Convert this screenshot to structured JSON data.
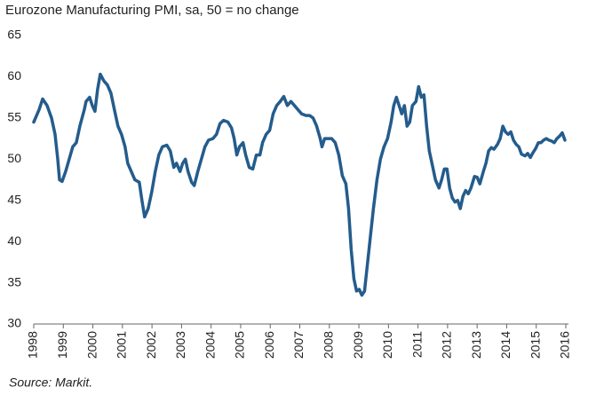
{
  "chart_data": {
    "type": "line",
    "title": "Eurozone Manufacturing PMI, sa, 50 = no change",
    "source": "Source: Markit.",
    "color": "#245c8c",
    "grid": false,
    "x": [
      1998.0,
      1998.18,
      1998.3,
      1998.45,
      1998.6,
      1998.72,
      1998.81,
      1998.87,
      1998.96,
      1999.08,
      1999.2,
      1999.32,
      1999.44,
      1999.56,
      1999.71,
      1999.77,
      1999.89,
      1999.98,
      2000.07,
      2000.16,
      2000.25,
      2000.37,
      2000.49,
      2000.61,
      2000.73,
      2000.85,
      2000.97,
      2001.09,
      2001.18,
      2001.3,
      2001.42,
      2001.57,
      2001.66,
      2001.75,
      2001.87,
      2001.99,
      2002.11,
      2002.23,
      2002.35,
      2002.5,
      2002.62,
      2002.74,
      2002.83,
      2002.95,
      2003.04,
      2003.13,
      2003.22,
      2003.34,
      2003.43,
      2003.55,
      2003.67,
      2003.79,
      2003.91,
      2004.06,
      2004.18,
      2004.3,
      2004.42,
      2004.57,
      2004.69,
      2004.78,
      2004.87,
      2004.96,
      2005.08,
      2005.17,
      2005.29,
      2005.41,
      2005.53,
      2005.65,
      2005.74,
      2005.86,
      2005.98,
      2006.1,
      2006.22,
      2006.34,
      2006.46,
      2006.58,
      2006.7,
      2006.82,
      2006.94,
      2007.06,
      2007.21,
      2007.33,
      2007.45,
      2007.57,
      2007.69,
      2007.75,
      2007.84,
      2007.96,
      2008.08,
      2008.2,
      2008.32,
      2008.44,
      2008.56,
      2008.65,
      2008.74,
      2008.83,
      2008.92,
      2009.01,
      2009.1,
      2009.19,
      2009.28,
      2009.37,
      2009.49,
      2009.61,
      2009.73,
      2009.85,
      2009.97,
      2010.09,
      2010.18,
      2010.27,
      2010.36,
      2010.45,
      2010.54,
      2010.63,
      2010.72,
      2010.81,
      2010.93,
      2011.02,
      2011.11,
      2011.2,
      2011.29,
      2011.38,
      2011.5,
      2011.59,
      2011.71,
      2011.8,
      2011.89,
      2011.98,
      2012.07,
      2012.16,
      2012.25,
      2012.34,
      2012.43,
      2012.52,
      2012.61,
      2012.7,
      2012.79,
      2012.91,
      2013.0,
      2013.09,
      2013.21,
      2013.3,
      2013.39,
      2013.48,
      2013.57,
      2013.69,
      2013.78,
      2013.87,
      2013.96,
      2014.05,
      2014.14,
      2014.23,
      2014.32,
      2014.41,
      2014.5,
      2014.62,
      2014.71,
      2014.8,
      2014.89,
      2014.98,
      2015.07,
      2015.16,
      2015.25,
      2015.34,
      2015.43,
      2015.52,
      2015.61,
      2015.7,
      2015.79,
      2015.88,
      2015.97
    ],
    "values": [
      54.5,
      56,
      57.3,
      56.5,
      55,
      53,
      50,
      47.5,
      47.3,
      48.5,
      50,
      51.5,
      52,
      54,
      56,
      57,
      57.5,
      56.5,
      55.8,
      58.5,
      60.3,
      59.5,
      59,
      58,
      56,
      54,
      53,
      51.5,
      49.5,
      48.5,
      47.5,
      47.2,
      45,
      43,
      44,
      46,
      48.5,
      50.5,
      51.5,
      51.7,
      51,
      49,
      49.5,
      48.5,
      49.5,
      50,
      48.5,
      47.2,
      46.8,
      48.5,
      50,
      51.5,
      52.3,
      52.5,
      53,
      54.3,
      54.7,
      54.5,
      53.8,
      52.5,
      50.5,
      51.5,
      52,
      50.5,
      49,
      48.8,
      50.5,
      50.5,
      52,
      53,
      53.5,
      55.5,
      56.5,
      57,
      57.6,
      56.5,
      57,
      56.5,
      56,
      55.5,
      55.3,
      55.3,
      55,
      54,
      52.5,
      51.5,
      52.5,
      52.5,
      52.5,
      52,
      50.5,
      48,
      47,
      44,
      39,
      35.5,
      34,
      34.2,
      33.5,
      34,
      37,
      40,
      44,
      47.5,
      50,
      51.5,
      52.5,
      54.5,
      56.5,
      57.5,
      56.5,
      55.5,
      56.5,
      54,
      54.5,
      56.5,
      57,
      58.8,
      57.5,
      57.8,
      54,
      51,
      49,
      47.5,
      46.5,
      47.5,
      48.8,
      48.8,
      46.5,
      45.3,
      44.8,
      45,
      44,
      45.5,
      46.2,
      45.8,
      46.5,
      47.9,
      47.8,
      47,
      48.5,
      49.5,
      51,
      51.4,
      51.2,
      51.8,
      52.5,
      54,
      53.3,
      53,
      53.3,
      52.3,
      51.8,
      51.5,
      50.6,
      50.4,
      50.7,
      50.2,
      50.8,
      51.3,
      52,
      52,
      52.3,
      52.5,
      52.3,
      52.2,
      52,
      52.5,
      52.8,
      53.2,
      52.3
    ],
    "xlim": [
      1998,
      2016
    ],
    "xticks": [
      1998,
      1999,
      2000,
      2001,
      2002,
      2003,
      2004,
      2005,
      2006,
      2007,
      2008,
      2009,
      2010,
      2011,
      2012,
      2013,
      2014,
      2015,
      2016
    ],
    "ylim": [
      30,
      65
    ],
    "yticks": [
      30,
      35,
      40,
      45,
      50,
      55,
      60,
      65
    ]
  }
}
